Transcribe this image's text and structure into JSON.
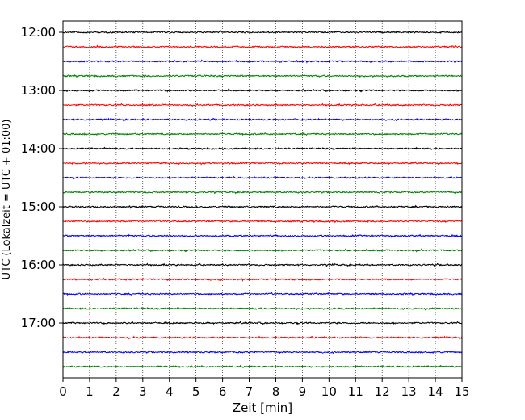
{
  "chart_data": {
    "type": "line",
    "title": "",
    "xlabel": "Zeit  [min]",
    "ylabel": "UTC (Lokalzeit = UTC + 01:00)",
    "xlim": [
      0,
      15
    ],
    "x_ticks": [
      "0",
      "1",
      "2",
      "3",
      "4",
      "5",
      "6",
      "7",
      "8",
      "9",
      "10",
      "11",
      "12",
      "13",
      "14",
      "15"
    ],
    "y_ticks": [
      "12:00",
      "13:00",
      "14:00",
      "15:00",
      "16:00",
      "17:00"
    ],
    "grid": "vertical dotted lines at every minute",
    "legend": "none",
    "color_cycle": [
      "#000000",
      "#ff0000",
      "#0000ff",
      "#008000"
    ],
    "row_interval_min": 15,
    "series": [
      {
        "start": "12:00",
        "color": "#000000"
      },
      {
        "start": "12:15",
        "color": "#ff0000"
      },
      {
        "start": "12:30",
        "color": "#0000ff"
      },
      {
        "start": "12:45",
        "color": "#008000"
      },
      {
        "start": "13:00",
        "color": "#000000"
      },
      {
        "start": "13:15",
        "color": "#ff0000"
      },
      {
        "start": "13:30",
        "color": "#0000ff"
      },
      {
        "start": "13:45",
        "color": "#008000"
      },
      {
        "start": "14:00",
        "color": "#000000"
      },
      {
        "start": "14:15",
        "color": "#ff0000"
      },
      {
        "start": "14:30",
        "color": "#0000ff"
      },
      {
        "start": "14:45",
        "color": "#008000"
      },
      {
        "start": "15:00",
        "color": "#000000"
      },
      {
        "start": "15:15",
        "color": "#ff0000"
      },
      {
        "start": "15:30",
        "color": "#0000ff"
      },
      {
        "start": "15:45",
        "color": "#008000"
      },
      {
        "start": "16:00",
        "color": "#000000"
      },
      {
        "start": "16:15",
        "color": "#ff0000"
      },
      {
        "start": "16:30",
        "color": "#0000ff"
      },
      {
        "start": "16:45",
        "color": "#008000"
      },
      {
        "start": "17:00",
        "color": "#000000"
      },
      {
        "start": "17:15",
        "color": "#ff0000"
      },
      {
        "start": "17:30",
        "color": "#0000ff"
      },
      {
        "start": "17:45",
        "color": "#008000"
      }
    ]
  }
}
